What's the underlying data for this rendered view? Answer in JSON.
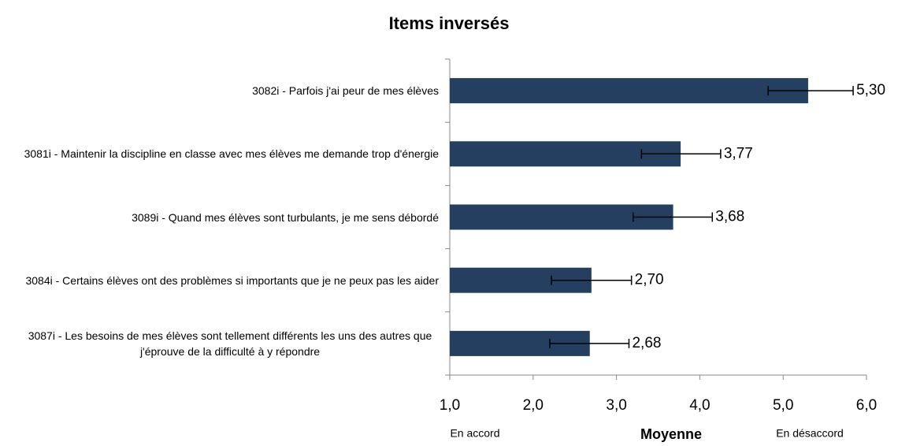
{
  "chart_data": {
    "type": "bar",
    "orientation": "horizontal",
    "title": "Items inversés",
    "xlabel": "Moyenne",
    "xlabel_left": "En accord",
    "xlabel_right": "En désaccord",
    "categories": [
      "3082i - Parfois j'ai peur de mes élèves",
      "3081i - Maintenir la discipline en classe avec mes élèves me demande trop d'énergie",
      "3089i - Quand mes élèves sont turbulants, je me sens débordé",
      "3084i - Certains élèves ont des problèmes si importants que je ne peux pas les aider",
      "3087i - Les besoins de mes élèves sont tellement différents les uns des autres que j'éprouve de la difficulté à y répondre"
    ],
    "values": [
      5.3,
      3.77,
      3.68,
      2.7,
      2.68
    ],
    "value_labels": [
      "5,30",
      "3,77",
      "3,68",
      "2,70",
      "2,68"
    ],
    "errors_low": [
      4.82,
      3.3,
      3.2,
      2.22,
      2.2
    ],
    "errors_high": [
      5.84,
      4.25,
      4.15,
      3.18,
      3.15
    ],
    "color": "#243f60",
    "xlim": [
      1,
      6
    ],
    "xticks": [
      {
        "value": 1,
        "label": "1,0"
      },
      {
        "value": 2,
        "label": "2,0"
      },
      {
        "value": 3,
        "label": "3,0"
      },
      {
        "value": 4,
        "label": "4,0"
      },
      {
        "value": 5,
        "label": "5,0"
      },
      {
        "value": 6,
        "label": "6,0"
      }
    ]
  }
}
